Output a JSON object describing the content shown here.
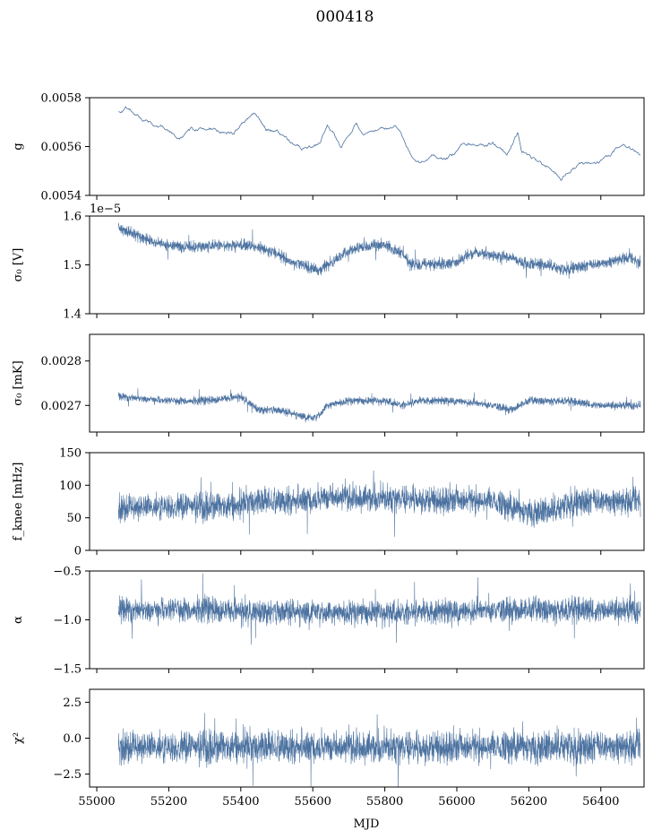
{
  "figure_title": "000418",
  "shared_xlabel": "MJD",
  "x_tick_labels": [
    "55000",
    "55200",
    "55400",
    "55600",
    "55800",
    "56000",
    "56200",
    "56400"
  ],
  "series_color": "#4c72a0",
  "chart_data": [
    {
      "type": "line",
      "ylabel": "g",
      "ylim": [
        0.0054,
        0.0058
      ],
      "yticks": [
        0.0054,
        0.0056,
        0.0058
      ],
      "ytick_labels": [
        "0.0054",
        "0.0056",
        "0.0058"
      ],
      "offset_text": "",
      "xlim": [
        54980,
        56520
      ],
      "x_start": 55060,
      "x_end": 56510,
      "style": "smooth",
      "noise": 5e-06,
      "trend": [
        [
          55060,
          0.00574
        ],
        [
          55080,
          0.00576
        ],
        [
          55110,
          0.00573
        ],
        [
          55150,
          0.0057
        ],
        [
          55200,
          0.00567
        ],
        [
          55230,
          0.00564
        ],
        [
          55260,
          0.00567
        ],
        [
          55300,
          0.00568
        ],
        [
          55340,
          0.00567
        ],
        [
          55380,
          0.00565
        ],
        [
          55420,
          0.00572
        ],
        [
          55440,
          0.00573
        ],
        [
          55470,
          0.00567
        ],
        [
          55500,
          0.00566
        ],
        [
          55540,
          0.00562
        ],
        [
          55570,
          0.00559
        ],
        [
          55600,
          0.00559
        ],
        [
          55620,
          0.00561
        ],
        [
          55640,
          0.00569
        ],
        [
          55680,
          0.0056
        ],
        [
          55720,
          0.00569
        ],
        [
          55750,
          0.00565
        ],
        [
          55800,
          0.00567
        ],
        [
          55830,
          0.00569
        ],
        [
          55850,
          0.00564
        ],
        [
          55870,
          0.00557
        ],
        [
          55900,
          0.00554
        ],
        [
          55930,
          0.00557
        ],
        [
          55960,
          0.00555
        ],
        [
          55990,
          0.00557
        ],
        [
          56020,
          0.00562
        ],
        [
          56060,
          0.0056
        ],
        [
          56100,
          0.00561
        ],
        [
          56140,
          0.00557
        ],
        [
          56170,
          0.00566
        ],
        [
          56180,
          0.00558
        ],
        [
          56220,
          0.00554
        ],
        [
          56260,
          0.00551
        ],
        [
          56290,
          0.00547
        ],
        [
          56310,
          0.0055
        ],
        [
          56340,
          0.00552
        ],
        [
          56370,
          0.00553
        ],
        [
          56420,
          0.00555
        ],
        [
          56460,
          0.00561
        ],
        [
          56480,
          0.00559
        ],
        [
          56510,
          0.00556
        ]
      ]
    },
    {
      "type": "line",
      "ylabel": "σ₀ [V]",
      "ylim": [
        1.4,
        1.6
      ],
      "yticks": [
        1.4,
        1.5,
        1.6
      ],
      "ytick_labels": [
        "1.4",
        "1.5",
        "1.6"
      ],
      "offset_text": "1e−5",
      "xlim": [
        54980,
        56520
      ],
      "x_start": 55060,
      "x_end": 56510,
      "style": "band",
      "noise": 0.008,
      "trend": [
        [
          55060,
          1.575
        ],
        [
          55100,
          1.565
        ],
        [
          55150,
          1.548
        ],
        [
          55200,
          1.54
        ],
        [
          55250,
          1.535
        ],
        [
          55300,
          1.538
        ],
        [
          55350,
          1.54
        ],
        [
          55400,
          1.542
        ],
        [
          55450,
          1.535
        ],
        [
          55500,
          1.525
        ],
        [
          55540,
          1.505
        ],
        [
          55580,
          1.498
        ],
        [
          55620,
          1.487
        ],
        [
          55650,
          1.505
        ],
        [
          55700,
          1.53
        ],
        [
          55750,
          1.538
        ],
        [
          55800,
          1.54
        ],
        [
          55850,
          1.525
        ],
        [
          55870,
          1.5
        ],
        [
          55900,
          1.5
        ],
        [
          55950,
          1.502
        ],
        [
          56000,
          1.505
        ],
        [
          56030,
          1.52
        ],
        [
          56060,
          1.525
        ],
        [
          56100,
          1.52
        ],
        [
          56150,
          1.515
        ],
        [
          56180,
          1.505
        ],
        [
          56220,
          1.502
        ],
        [
          56260,
          1.498
        ],
        [
          56290,
          1.49
        ],
        [
          56320,
          1.495
        ],
        [
          56360,
          1.498
        ],
        [
          56420,
          1.505
        ],
        [
          56470,
          1.515
        ],
        [
          56510,
          1.505
        ]
      ]
    },
    {
      "type": "line",
      "ylabel": "σ₀ [mK]",
      "ylim": [
        0.00264,
        0.00286
      ],
      "yticks": [
        0.0027,
        0.0028
      ],
      "ytick_labels": [
        "0.0027",
        "0.0028"
      ],
      "offset_text": "",
      "xlim": [
        54980,
        56520
      ],
      "x_start": 55060,
      "x_end": 56510,
      "style": "band",
      "noise": 6e-06,
      "trend": [
        [
          55060,
          0.00272
        ],
        [
          55200,
          0.00271
        ],
        [
          55300,
          0.00271
        ],
        [
          55400,
          0.00272
        ],
        [
          55450,
          0.00269
        ],
        [
          55500,
          0.00269
        ],
        [
          55550,
          0.00268
        ],
        [
          55600,
          0.00267
        ],
        [
          55620,
          0.00268
        ],
        [
          55640,
          0.0027
        ],
        [
          55700,
          0.00271
        ],
        [
          55800,
          0.00271
        ],
        [
          55850,
          0.0027
        ],
        [
          55900,
          0.00271
        ],
        [
          56000,
          0.00271
        ],
        [
          56100,
          0.0027
        ],
        [
          56150,
          0.00269
        ],
        [
          56200,
          0.00271
        ],
        [
          56300,
          0.00271
        ],
        [
          56400,
          0.0027
        ],
        [
          56510,
          0.0027
        ]
      ]
    },
    {
      "type": "line",
      "ylabel": "f_knee [mHz]",
      "ylim": [
        0,
        150
      ],
      "yticks": [
        0,
        50,
        100,
        150
      ],
      "ytick_labels": [
        "0",
        "50",
        "100",
        "150"
      ],
      "offset_text": "",
      "xlim": [
        54980,
        56520
      ],
      "x_start": 55060,
      "x_end": 56510,
      "style": "band",
      "noise": 14,
      "trend": [
        [
          55060,
          65
        ],
        [
          55200,
          68
        ],
        [
          55400,
          68
        ],
        [
          55420,
          75
        ],
        [
          55500,
          75
        ],
        [
          55600,
          78
        ],
        [
          55650,
          82
        ],
        [
          55800,
          80
        ],
        [
          55900,
          80
        ],
        [
          55910,
          78
        ],
        [
          56100,
          76
        ],
        [
          56180,
          60
        ],
        [
          56250,
          60
        ],
        [
          56280,
          62
        ],
        [
          56320,
          75
        ],
        [
          56510,
          75
        ]
      ]
    },
    {
      "type": "line",
      "ylabel": "α",
      "ylim": [
        -1.5,
        -0.5
      ],
      "yticks": [
        -1.5,
        -1.0,
        -0.5
      ],
      "ytick_labels": [
        "−1.5",
        "−1.0",
        "−0.5"
      ],
      "offset_text": "",
      "xlim": [
        54980,
        56520
      ],
      "x_start": 55060,
      "x_end": 56510,
      "style": "band",
      "noise": 0.085,
      "trend": [
        [
          55060,
          -0.9
        ],
        [
          55300,
          -0.9
        ],
        [
          55500,
          -0.92
        ],
        [
          55700,
          -0.93
        ],
        [
          55900,
          -0.93
        ],
        [
          56100,
          -0.9
        ],
        [
          56300,
          -0.9
        ],
        [
          56510,
          -0.9
        ]
      ]
    },
    {
      "type": "line",
      "ylabel": "χ²",
      "ylim": [
        -3.4,
        3.4
      ],
      "yticks": [
        -2.5,
        0.0,
        2.5
      ],
      "ytick_labels": [
        "−2.5",
        "0.0",
        "2.5"
      ],
      "offset_text": "",
      "xlim": [
        54980,
        56520
      ],
      "x_start": 55060,
      "x_end": 56510,
      "style": "band",
      "noise": 0.75,
      "trend": [
        [
          55060,
          -0.6
        ],
        [
          56510,
          -0.6
        ]
      ]
    }
  ]
}
